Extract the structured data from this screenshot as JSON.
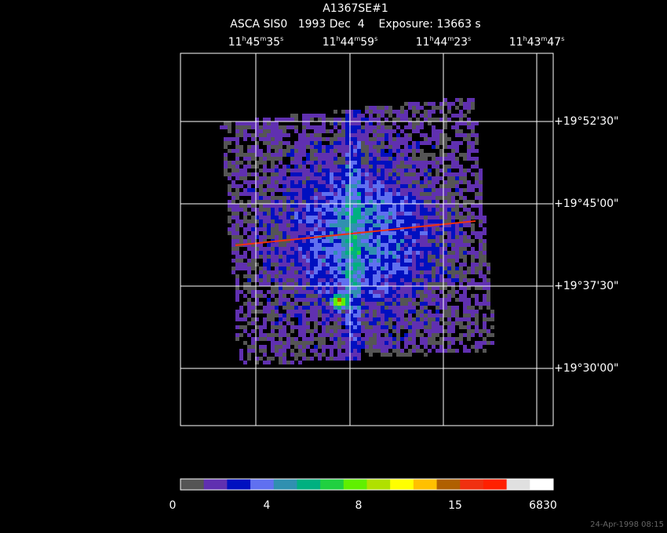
{
  "header": {
    "title": "A1367SE#1",
    "subtitle": "ASCA SIS0   1993 Dec  4    Exposure: 13663 s"
  },
  "ra_labels": [
    [
      "11",
      "h",
      "45",
      "m",
      "35",
      "s"
    ],
    [
      "11",
      "h",
      "44",
      "m",
      "59",
      "s"
    ],
    [
      "11",
      "h",
      "44",
      "m",
      "23",
      "s"
    ],
    [
      "11",
      "h",
      "43",
      "m",
      "47",
      "s"
    ]
  ],
  "dec_labels": [
    "+19°52'30\"",
    "+19°45'00\"",
    "+19°37'30\"",
    "+19°30'00\""
  ],
  "colorbar": {
    "colors": [
      "#555555",
      "#6030b0",
      "#0010c0",
      "#6070f0",
      "#3090b0",
      "#00b080",
      "#20d040",
      "#60f000",
      "#b0e000",
      "#ffff00",
      "#ffc000",
      "#b06000",
      "#f03010",
      "#ff2000",
      "#e0e0e0",
      "#ffffff"
    ],
    "labels": [
      "0",
      "4",
      "8",
      "15",
      "6830"
    ]
  },
  "timestamp": "24-Apr-1998 08:15"
}
